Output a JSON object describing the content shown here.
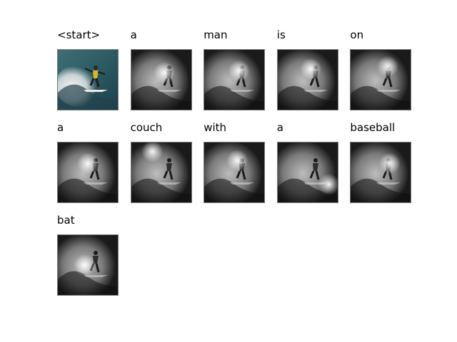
{
  "caption_tokens": [
    "<start>",
    "a",
    "man",
    "is",
    "on",
    "a",
    "couch",
    "with",
    "a",
    "baseball",
    "bat"
  ],
  "image_kind": "surfer-photo",
  "attention_style": "grayscale-heatmap"
}
